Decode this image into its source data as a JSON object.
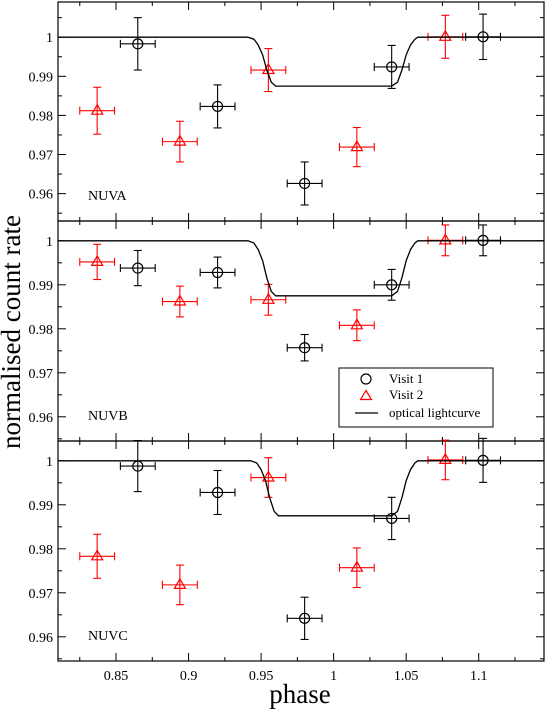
{
  "figure": {
    "ylabel": "normalised count rate",
    "xlabel": "phase",
    "legend": {
      "placement": "bottom-right of middle panel",
      "entries": [
        {
          "label": "Visit 1",
          "marker": "circle",
          "color": "#000000"
        },
        {
          "label": "Visit 2",
          "marker": "triangle",
          "color": "#ff0000"
        },
        {
          "label": "optical lightcurve",
          "marker": "line",
          "color": "#000000"
        }
      ]
    },
    "colors": {
      "visit1": "#000000",
      "visit2": "#ff0000",
      "model": "#000000"
    }
  },
  "chart_data": [
    {
      "type": "scatter",
      "panel_label": "NUVA",
      "xlim": [
        0.81,
        1.145
      ],
      "ylim": [
        0.953,
        1.009
      ],
      "xticks": [
        "0.85",
        "0.9",
        "0.95",
        "1",
        "1.05",
        "1.1"
      ],
      "yticks": [
        "0.96",
        "0.97",
        "0.98",
        "0.99",
        "1"
      ],
      "series": [
        {
          "name": "Visit 1",
          "marker": "circle",
          "x": [
            0.865,
            0.92,
            0.98,
            1.04,
            1.103
          ],
          "y": [
            0.9983,
            0.9823,
            0.9626,
            0.9924,
            1.0001
          ],
          "xerr": [
            0.012,
            0.012,
            0.012,
            0.012,
            0.012
          ],
          "yerr": [
            0.0067,
            0.0055,
            0.0055,
            0.0055,
            0.0058
          ]
        },
        {
          "name": "Visit 2",
          "marker": "triangle",
          "x": [
            0.837,
            0.894,
            0.955,
            1.016,
            1.077
          ],
          "y": [
            0.9812,
            0.9733,
            0.9916,
            0.9719,
            1.0001
          ],
          "xerr": [
            0.012,
            0.012,
            0.012,
            0.012,
            0.012
          ],
          "yerr": [
            0.006,
            0.0052,
            0.0055,
            0.005,
            0.0055
          ]
        },
        {
          "name": "optical lightcurve",
          "marker": "line",
          "x": [
            0.81,
            0.941,
            0.945,
            0.948,
            0.951,
            0.954,
            0.957,
            0.96,
            1.04,
            1.044,
            1.047,
            1.05,
            1.053,
            1.056,
            1.058,
            1.145
          ],
          "y": [
            1.0,
            1.0,
            0.9995,
            0.998,
            0.9955,
            0.9915,
            0.9885,
            0.9875,
            0.9875,
            0.9885,
            0.9915,
            0.9955,
            0.998,
            0.9995,
            1.0,
            1.0
          ]
        }
      ]
    },
    {
      "type": "scatter",
      "panel_label": "NUVB",
      "xlim": [
        0.81,
        1.145
      ],
      "ylim": [
        0.9545,
        1.0045
      ],
      "xticks": [
        "0.85",
        "0.9",
        "0.95",
        "1",
        "1.05",
        "1.1"
      ],
      "yticks": [
        "0.96",
        "0.97",
        "0.98",
        "0.99",
        "1"
      ],
      "series": [
        {
          "name": "Visit 1",
          "marker": "circle",
          "x": [
            0.865,
            0.92,
            0.98,
            1.04,
            1.103
          ],
          "y": [
            0.9938,
            0.9928,
            0.9757,
            0.99,
            1.0001
          ],
          "xerr": [
            0.012,
            0.012,
            0.012,
            0.012,
            0.012
          ],
          "yerr": [
            0.004,
            0.0035,
            0.003,
            0.0035,
            0.0035
          ]
        },
        {
          "name": "Visit 2",
          "marker": "triangle",
          "x": [
            0.837,
            0.894,
            0.955,
            1.016,
            1.077
          ],
          "y": [
            0.9952,
            0.9862,
            0.9866,
            0.9808,
            1.0001
          ],
          "xerr": [
            0.012,
            0.012,
            0.012,
            0.012,
            0.012
          ],
          "yerr": [
            0.004,
            0.0035,
            0.0035,
            0.0035,
            0.0035
          ]
        },
        {
          "name": "optical lightcurve",
          "marker": "line",
          "x": [
            0.81,
            0.941,
            0.945,
            0.948,
            0.951,
            0.954,
            0.957,
            0.96,
            1.04,
            1.044,
            1.047,
            1.05,
            1.053,
            1.056,
            1.058,
            1.145
          ],
          "y": [
            1.0,
            1.0,
            0.9995,
            0.998,
            0.9955,
            0.9915,
            0.9885,
            0.9875,
            0.9875,
            0.9885,
            0.9915,
            0.9955,
            0.998,
            0.9995,
            1.0,
            1.0
          ]
        }
      ]
    },
    {
      "type": "scatter",
      "panel_label": "NUVC",
      "xlim": [
        0.81,
        1.145
      ],
      "ylim": [
        0.9545,
        1.0045
      ],
      "xticks": [
        "0.85",
        "0.9",
        "0.95",
        "1",
        "1.05",
        "1.1"
      ],
      "yticks": [
        "0.96",
        "0.97",
        "0.98",
        "0.99",
        "1"
      ],
      "series": [
        {
          "name": "Visit 1",
          "marker": "circle",
          "x": [
            0.865,
            0.92,
            0.98,
            1.04,
            1.103
          ],
          "y": [
            0.9988,
            0.9928,
            0.9642,
            0.9869,
            1.0001
          ],
          "xerr": [
            0.012,
            0.012,
            0.012,
            0.012,
            0.012
          ],
          "yerr": [
            0.0058,
            0.005,
            0.0048,
            0.0048,
            0.005
          ]
        },
        {
          "name": "Visit 2",
          "marker": "triangle",
          "x": [
            0.837,
            0.894,
            0.955,
            1.016,
            1.077
          ],
          "y": [
            0.9783,
            0.9718,
            0.9962,
            0.9757,
            1.0002
          ],
          "xerr": [
            0.012,
            0.012,
            0.012,
            0.012,
            0.012
          ],
          "yerr": [
            0.005,
            0.0045,
            0.0045,
            0.0045,
            0.0045
          ]
        },
        {
          "name": "optical lightcurve",
          "marker": "line",
          "x": [
            0.81,
            0.943,
            0.947,
            0.95,
            0.953,
            0.956,
            0.959,
            0.962,
            1.04,
            1.044,
            1.047,
            1.05,
            1.053,
            1.056,
            1.058,
            1.145
          ],
          "y": [
            1.0,
            1.0,
            0.9995,
            0.998,
            0.9955,
            0.9915,
            0.9885,
            0.9875,
            0.9875,
            0.9885,
            0.9915,
            0.9955,
            0.998,
            0.9995,
            1.0,
            1.0
          ]
        }
      ]
    }
  ]
}
